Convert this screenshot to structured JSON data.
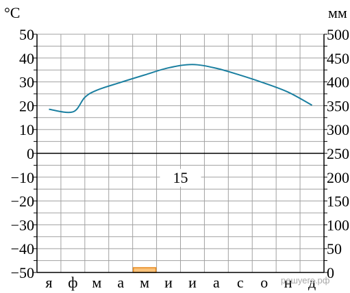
{
  "chart_data": {
    "type": "climatogram",
    "units": {
      "temperature": "°C",
      "precipitation": "мм"
    },
    "months": [
      "я",
      "ф",
      "м",
      "а",
      "м",
      "и",
      "и",
      "а",
      "с",
      "о",
      "н",
      "д"
    ],
    "y_left": {
      "ylim": [
        -50,
        50
      ],
      "ticks": [
        "50",
        "40",
        "30",
        "20",
        "10",
        "0",
        "−10",
        "−20",
        "−30",
        "−40",
        "−50"
      ]
    },
    "y_right": {
      "ylim": [
        0,
        500
      ],
      "ticks": [
        "500",
        "450",
        "400",
        "350",
        "300",
        "250",
        "200",
        "150",
        "100",
        "50",
        "0"
      ]
    },
    "temperature_curve": {
      "x": [
        0,
        1,
        1.5,
        2,
        3,
        4,
        5,
        6,
        7,
        8,
        9,
        10,
        11
      ],
      "y": [
        18.5,
        17.4,
        23.5,
        26.5,
        29.8,
        32.9,
        35.9,
        37.3,
        35.7,
        32.8,
        29.5,
        25.7,
        20.2
      ]
    },
    "precipitation_bars": [
      {
        "month_index": 4,
        "value": 10
      }
    ],
    "annotation": "15",
    "colors": {
      "temperature": "#1a7fa0",
      "precip_fill": "#f9c27a",
      "precip_stroke": "#e8891c",
      "grid": "#a0a0a0"
    }
  },
  "watermark": "решуегэ.рф"
}
